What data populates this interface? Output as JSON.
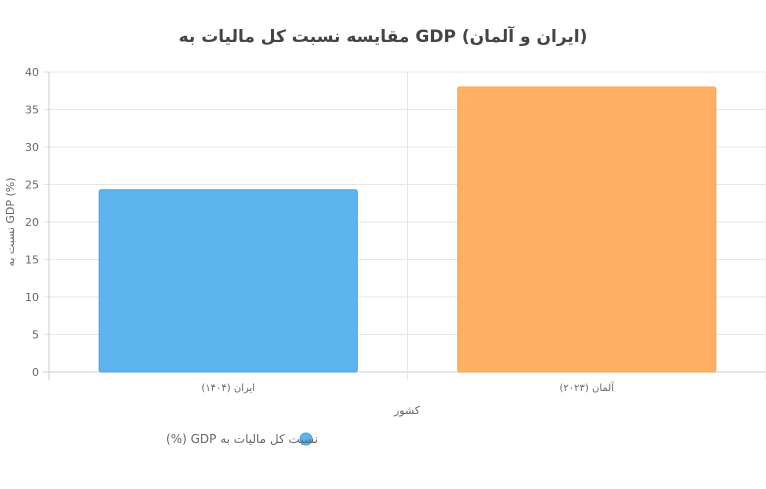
{
  "chart_data": {
    "type": "bar",
    "title": "مقایسه نسبت کل مالیات به GDP (ایران و آلمان)",
    "xlabel": "کشور",
    "ylabel": "نسبت به GDP (%)",
    "categories": [
      "ایران (۱۴۰۴)",
      "آلمان (۲۰۲۳)"
    ],
    "series": [
      {
        "name": "نسبت کل مالیات به GDP (%)",
        "values": [
          24.3,
          38.0
        ],
        "colors": [
          "#5DB4EE",
          "#FFB063"
        ],
        "border_colors": [
          "#41A4E8",
          "#FFA04A"
        ]
      }
    ],
    "ylim": [
      0,
      40
    ],
    "yticks": [
      0,
      5,
      10,
      15,
      20,
      25,
      30,
      35,
      40
    ],
    "grid": true,
    "legend_position": "bottom"
  }
}
